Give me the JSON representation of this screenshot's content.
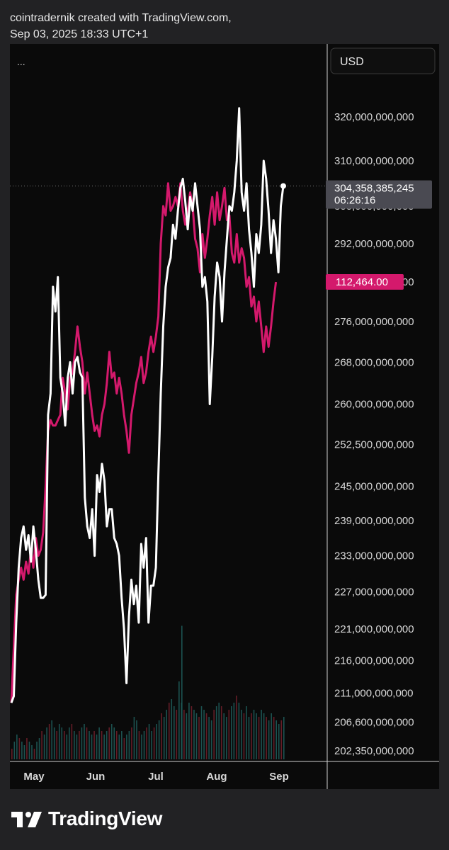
{
  "header": {
    "line1": "cointradernik created with TradingView.com,",
    "line2": "Sep 03, 2025 18:33 UTC+1"
  },
  "menu_glyph": "...",
  "currency_button": "USD",
  "brand": {
    "name": "TradingView",
    "icon": "tradingview-logo-icon"
  },
  "colors": {
    "background": "#0a0a0a",
    "outer": "#222224",
    "series_white": "#ffffff",
    "series_pink": "#d4196c",
    "price_badge": "#4a4a52",
    "pink_badge": "#d4196c",
    "volume_up": "#1e5a58",
    "volume_down": "#6e1f2a"
  },
  "chart_data": {
    "type": "line",
    "x_tick_labels": [
      "May",
      "Jun",
      "Jul",
      "Aug",
      "Sep"
    ],
    "y_axis": {
      "scale": "log",
      "tick_labels": [
        "320,000,000,000",
        "310,000,000,000",
        "300,000,000,000",
        "292,000,000,000",
        "284,000,000,000",
        "276,000,000,000",
        "268,000,000,000",
        "260,000,000,000",
        "252,500,000,000",
        "245,000,000,000",
        "239,000,000,000",
        "233,000,000,000",
        "227,000,000,000",
        "221,000,000,000",
        "216,000,000,000",
        "211,000,000,000",
        "206,600,000,000",
        "202,350,000,000"
      ],
      "tick_values": [
        320000000000,
        310000000000,
        300000000000,
        292000000000,
        284000000000,
        276000000000,
        268000000000,
        260000000000,
        252500000000,
        245000000000,
        239000000000,
        233000000000,
        227000000000,
        221000000000,
        216000000000,
        211000000000,
        206600000000,
        202350000000
      ]
    },
    "last_value_label": {
      "value": "304,358,385,245",
      "countdown": "06:26:16"
    },
    "pink_last_label": "112,464.00",
    "series": [
      {
        "color": "#ffffff",
        "values": [
          209500000000,
          210500000000,
          222000000000,
          231000000000,
          236000000000,
          238000000000,
          234000000000,
          236500000000,
          232000000000,
          238000000000,
          234000000000,
          229000000000,
          226000000000,
          226000000000,
          226500000000,
          258000000000,
          262000000000,
          283000000000,
          278000000000,
          285000000000,
          265000000000,
          262000000000,
          256000000000,
          265000000000,
          268000000000,
          262000000000,
          268000000000,
          269000000000,
          266000000000,
          265000000000,
          243000000000,
          238000000000,
          236000000000,
          241000000000,
          233000000000,
          247000000000,
          244000000000,
          249000000000,
          246000000000,
          238000000000,
          241000000000,
          241000000000,
          236000000000,
          235000000000,
          233000000000,
          226000000000,
          221000000000,
          212500000000,
          223000000000,
          229000000000,
          225000000000,
          228000000000,
          222000000000,
          235000000000,
          231000000000,
          236000000000,
          222000000000,
          228000000000,
          228000000000,
          231000000000,
          247000000000,
          262000000000,
          275000000000,
          283000000000,
          287000000000,
          289000000000,
          296000000000,
          293000000000,
          299000000000,
          304000000000,
          306000000000,
          301000000000,
          295000000000,
          302000000000,
          299000000000,
          305000000000,
          300000000000,
          295000000000,
          283000000000,
          285000000000,
          280000000000,
          260000000000,
          269000000000,
          281000000000,
          288000000000,
          285000000000,
          276000000000,
          286000000000,
          293000000000,
          300000000000,
          299000000000,
          303000000000,
          310000000000,
          322000000000,
          303000000000,
          299000000000,
          305000000000,
          295000000000,
          290000000000,
          283000000000,
          294000000000,
          290000000000,
          296000000000,
          310000000000,
          306000000000,
          299000000000,
          290000000000,
          297000000000,
          293000000000,
          286000000000,
          300000000000,
          304400000000
        ]
      },
      {
        "color": "#d4196c",
        "values": [
          209500000000,
          218000000000,
          226500000000,
          229000000000,
          231000000000,
          229000000000,
          232000000000,
          230000000000,
          234000000000,
          231000000000,
          236000000000,
          233000000000,
          234000000000,
          237000000000,
          245000000000,
          255000000000,
          257000000000,
          256000000000,
          256000000000,
          257000000000,
          258000000000,
          265000000000,
          262000000000,
          259000000000,
          265000000000,
          266000000000,
          270000000000,
          275000000000,
          271000000000,
          268000000000,
          262000000000,
          266000000000,
          262000000000,
          258000000000,
          255000000000,
          256000000000,
          254000000000,
          258000000000,
          260000000000,
          264000000000,
          270000000000,
          265000000000,
          266000000000,
          262000000000,
          265000000000,
          262000000000,
          258000000000,
          255000000000,
          251000000000,
          258000000000,
          261000000000,
          264000000000,
          266000000000,
          269000000000,
          264000000000,
          266000000000,
          270000000000,
          273000000000,
          270000000000,
          273000000000,
          277000000000,
          292000000000,
          300000000000,
          298000000000,
          305000000000,
          299000000000,
          300000000000,
          302000000000,
          300000000000,
          305000000000,
          299000000000,
          296000000000,
          299000000000,
          303000000000,
          300000000000,
          293000000000,
          291000000000,
          286000000000,
          294000000000,
          289000000000,
          293000000000,
          298000000000,
          302000000000,
          296000000000,
          303000000000,
          297000000000,
          300000000000,
          304000000000,
          297000000000,
          298000000000,
          290000000000,
          288000000000,
          294000000000,
          288000000000,
          291000000000,
          289000000000,
          283000000000,
          285000000000,
          279000000000,
          281000000000,
          276000000000,
          280000000000,
          275000000000,
          270000000000,
          275000000000,
          271000000000,
          275000000000,
          280000000000,
          284000000000
        ]
      }
    ],
    "volume": [
      3,
      5,
      7,
      6,
      5,
      4,
      6,
      5,
      4,
      3,
      5,
      6,
      8,
      7,
      9,
      10,
      11,
      9,
      8,
      10,
      9,
      8,
      7,
      9,
      10,
      8,
      7,
      8,
      9,
      10,
      9,
      8,
      7,
      8,
      7,
      9,
      8,
      7,
      8,
      9,
      10,
      9,
      8,
      7,
      8,
      6,
      7,
      8,
      9,
      12,
      11,
      8,
      7,
      8,
      9,
      10,
      8,
      9,
      10,
      11,
      13,
      12,
      14,
      16,
      17,
      15,
      14,
      22,
      16,
      14,
      13,
      16,
      15,
      14,
      13,
      12,
      15,
      14,
      13,
      12,
      11,
      14,
      15,
      16,
      15,
      13,
      12,
      14,
      15,
      16,
      18,
      16,
      14,
      13,
      15,
      12,
      13,
      14,
      13,
      12,
      14,
      13,
      12,
      11,
      13,
      12,
      11,
      10,
      11,
      12
    ],
    "volume_highlight": 13
  }
}
